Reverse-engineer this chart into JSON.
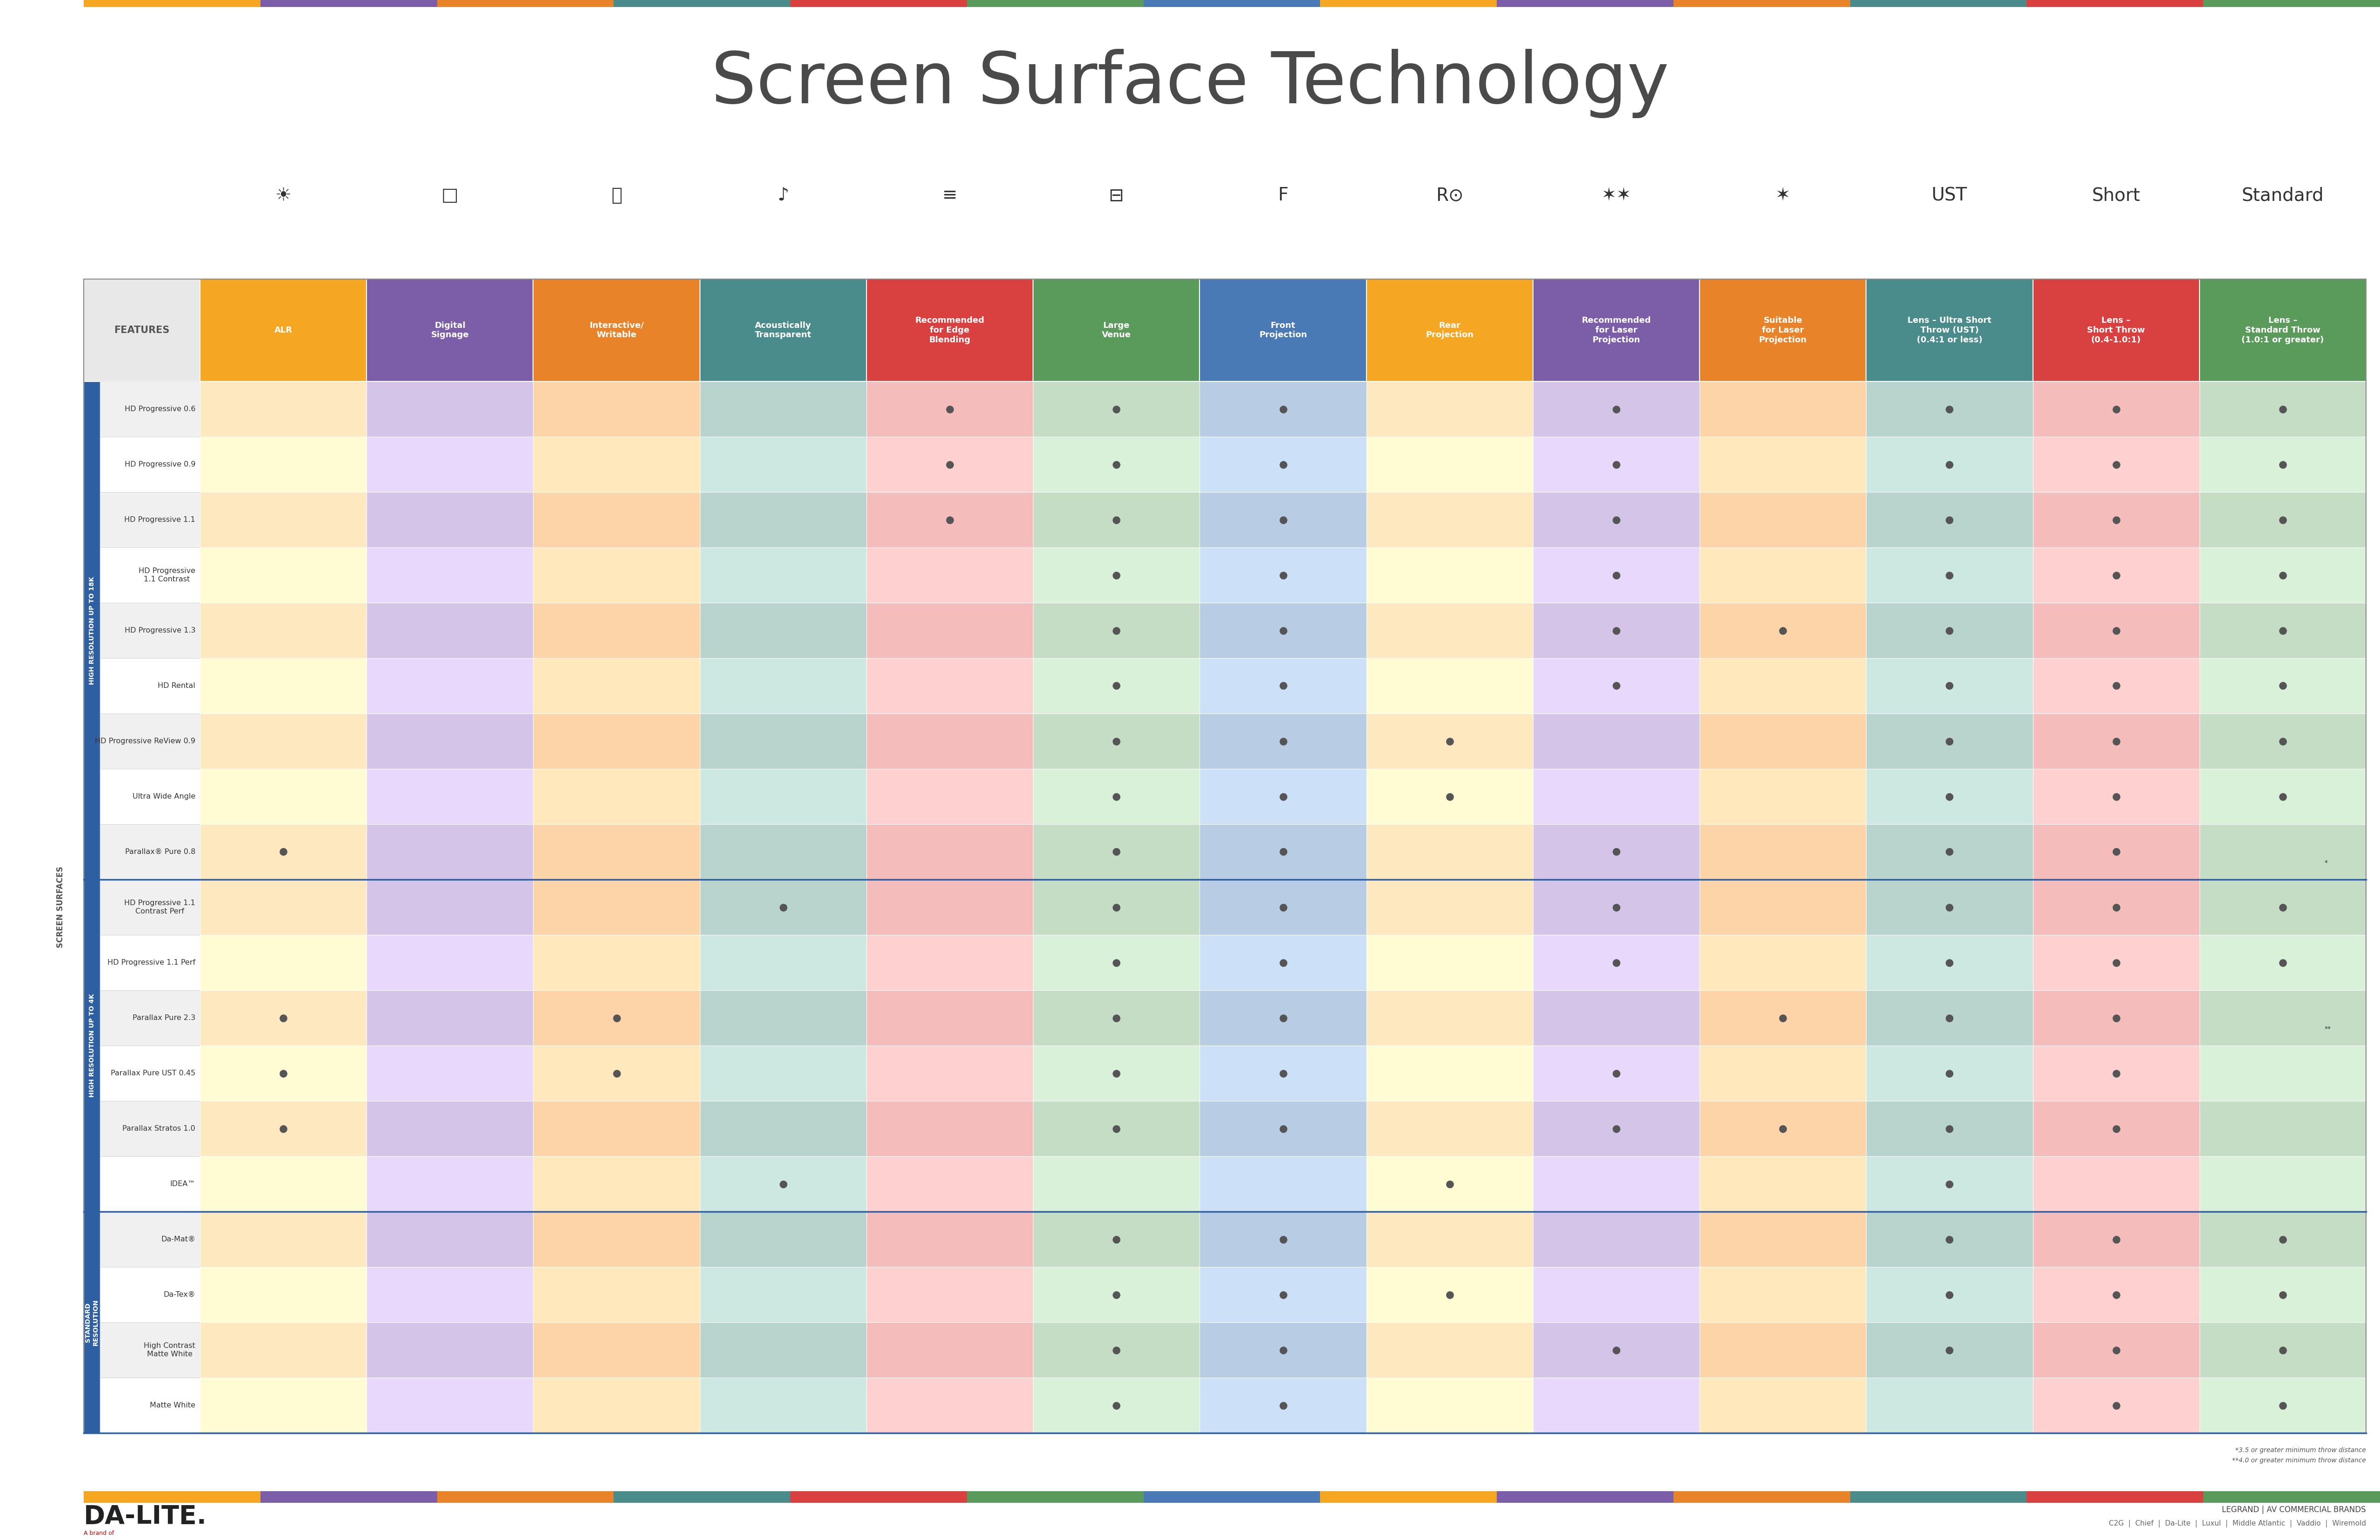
{
  "title": "Screen Surface Technology",
  "title_fontsize": 110,
  "title_color": "#4a4a4a",
  "title_font": "DejaVu Sans",
  "background_color": "#ffffff",
  "col_header_labels": [
    "ALR",
    "Digital\nSignage",
    "Interactive/\nWritable",
    "Acoustically\nTransparent",
    "Recommended\nfor Edge\nBlending",
    "Large\nVenue",
    "Front\nProjection",
    "Rear\nProjection",
    "Recommended\nfor Laser\nProjection",
    "Suitable\nfor Laser\nProjection",
    "Lens – Ultra Short\nThrow (UST)\n(0.4:1 or less)",
    "Lens –\nShort Throw\n(0.4-1.0:1)",
    "Lens –\nStandard Throw\n(1.0:1 or greater)"
  ],
  "col_header_colors": [
    "#f5a623",
    "#7b5ea7",
    "#e8832a",
    "#4a8c8c",
    "#d94040",
    "#5a9a5a",
    "#4a7ab5",
    "#f5a623",
    "#7b5ea7",
    "#e8832a",
    "#4a8c8c",
    "#d94040",
    "#5a9a5a"
  ],
  "features_label": "FEATURES",
  "row_groups": [
    {
      "label": "HIGH RESOLUTION UP TO 18K",
      "color": "#2e5fa3",
      "rows": [
        "HD Progressive 0.6",
        "HD Progressive 0.9",
        "HD Progressive 1.1",
        "HD Progressive\n1.1 Contrast",
        "HD Progressive 1.3",
        "HD Rental",
        "HD Progressive ReView 0.9",
        "Ultra Wide Angle",
        "Parallax® Pure 0.8"
      ]
    },
    {
      "label": "HIGH RESOLUTION UP TO 4K",
      "color": "#2e5fa3",
      "rows": [
        "HD Progressive 1.1\nContrast Perf",
        "HD Progressive 1.1 Perf",
        "Parallax Pure 2.3",
        "Parallax Pure UST 0.45",
        "Parallax Stratos 1.0",
        "IDEA™"
      ]
    },
    {
      "label": "STANDARD\nRESOLUTION",
      "color": "#2e5fa3",
      "rows": [
        "Da-Mat®",
        "Da-Tex®",
        "High Contrast\nMatte White",
        "Matte White"
      ]
    }
  ],
  "dot_color": "#555555",
  "dot_size": 120,
  "cell_colors_per_col": [
    "#fde8c0",
    "#d4c5e8",
    "#fdd4a8",
    "#b8d4cc",
    "#f5bcbc",
    "#c5ddc5",
    "#b8cce4",
    "#fde8c0",
    "#d4c5e8",
    "#fdd4a8",
    "#b8d4cc",
    "#f5bcbc",
    "#c5ddc5"
  ],
  "dots": {
    "HD Progressive 0.6": [
      0,
      0,
      0,
      0,
      1,
      1,
      1,
      0,
      1,
      0,
      1,
      1,
      1
    ],
    "HD Progressive 0.9": [
      0,
      0,
      0,
      0,
      1,
      1,
      1,
      0,
      1,
      0,
      1,
      1,
      1
    ],
    "HD Progressive 1.1": [
      0,
      0,
      0,
      0,
      1,
      1,
      1,
      0,
      1,
      0,
      1,
      1,
      1
    ],
    "HD Progressive\n1.1 Contrast": [
      0,
      0,
      0,
      0,
      0,
      1,
      1,
      0,
      1,
      0,
      1,
      1,
      1
    ],
    "HD Progressive 1.3": [
      0,
      0,
      0,
      0,
      0,
      1,
      1,
      0,
      1,
      1,
      1,
      1,
      1
    ],
    "HD Rental": [
      0,
      0,
      0,
      0,
      0,
      1,
      1,
      0,
      1,
      0,
      1,
      1,
      1
    ],
    "HD Progressive ReView 0.9": [
      0,
      0,
      0,
      0,
      0,
      1,
      1,
      1,
      0,
      0,
      1,
      1,
      1
    ],
    "Ultra Wide Angle": [
      0,
      0,
      0,
      0,
      0,
      1,
      1,
      1,
      0,
      0,
      1,
      1,
      1
    ],
    "Parallax® Pure 0.8": [
      1,
      0,
      0,
      0,
      0,
      1,
      1,
      0,
      1,
      0,
      1,
      1,
      0
    ],
    "HD Progressive 1.1\nContrast Perf": [
      0,
      0,
      0,
      1,
      0,
      1,
      1,
      0,
      1,
      0,
      1,
      1,
      1
    ],
    "HD Progressive 1.1 Perf": [
      0,
      0,
      0,
      0,
      0,
      1,
      1,
      0,
      1,
      0,
      1,
      1,
      1
    ],
    "Parallax Pure 2.3": [
      1,
      0,
      1,
      0,
      0,
      1,
      1,
      0,
      0,
      1,
      1,
      1,
      0
    ],
    "Parallax Pure UST 0.45": [
      1,
      0,
      1,
      0,
      0,
      1,
      1,
      0,
      1,
      0,
      1,
      1,
      0
    ],
    "Parallax Stratos 1.0": [
      1,
      0,
      0,
      0,
      0,
      1,
      1,
      0,
      1,
      1,
      1,
      1,
      0
    ],
    "IDEA™": [
      0,
      0,
      0,
      1,
      0,
      0,
      0,
      1,
      0,
      0,
      1,
      0,
      0
    ],
    "Da-Mat®": [
      0,
      0,
      0,
      0,
      0,
      1,
      1,
      0,
      0,
      0,
      1,
      1,
      1
    ],
    "Da-Tex®": [
      0,
      0,
      0,
      0,
      0,
      1,
      1,
      1,
      0,
      0,
      1,
      1,
      1
    ],
    "High Contrast\nMatte White": [
      0,
      0,
      0,
      0,
      0,
      1,
      1,
      0,
      1,
      0,
      1,
      1,
      1
    ],
    "Matte White": [
      0,
      0,
      0,
      0,
      0,
      1,
      1,
      0,
      0,
      0,
      0,
      1,
      1
    ]
  },
  "special_dots": {
    "Parallax® Pure 0.8": {
      "col": 12,
      "symbol": "*"
    },
    "Parallax Pure 2.3": {
      "col": 12,
      "symbol": "**"
    }
  },
  "footnotes": [
    "*3.5 or greater minimum throw distance",
    "**4.0 or greater minimum throw distance"
  ],
  "footer_brand": "DA-LITE.",
  "footer_sub": "A brand of",
  "footer_legrand": "LEGRAND | AV COMMERCIAL BRANDS",
  "footer_brands": "C2G  |  Chief  |  Da-Lite  |  Luxul  |  Middle Atlantic  |  Vaddio  |  Wiremold"
}
